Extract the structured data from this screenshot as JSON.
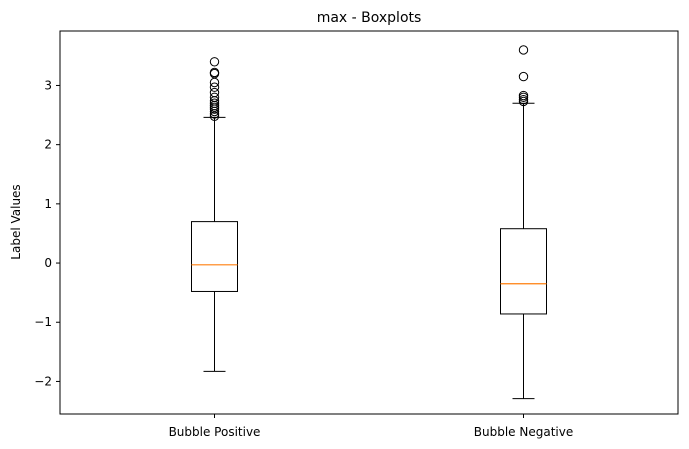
{
  "chart_data": {
    "type": "boxplot",
    "title": "max - Boxplots",
    "xlabel": "",
    "ylabel": "Label Values",
    "ylim": [
      -2.55,
      3.92
    ],
    "yticks": [
      -2,
      -1,
      0,
      1,
      2,
      3
    ],
    "ytick_labels": [
      "−2",
      "−1",
      "0",
      "1",
      "2",
      "3"
    ],
    "grid": false,
    "colors": {
      "box": "#000000",
      "median": "#ff7f0e",
      "background": "#ffffff"
    },
    "categories": [
      "Bubble Positive",
      "Bubble Negative"
    ],
    "series": [
      {
        "whisker_low": -1.83,
        "q1": -0.48,
        "median": -0.03,
        "q3": 0.7,
        "whisker_high": 2.46,
        "outliers": [
          2.48,
          2.52,
          2.56,
          2.6,
          2.63,
          2.66,
          2.7,
          2.74,
          2.8,
          2.88,
          2.97,
          3.05,
          3.2,
          3.22,
          3.4
        ]
      },
      {
        "whisker_low": -2.29,
        "q1": -0.86,
        "median": -0.35,
        "q3": 0.58,
        "whisker_high": 2.7,
        "outliers": [
          2.73,
          2.76,
          2.8,
          2.83,
          3.15,
          3.6
        ]
      }
    ]
  }
}
